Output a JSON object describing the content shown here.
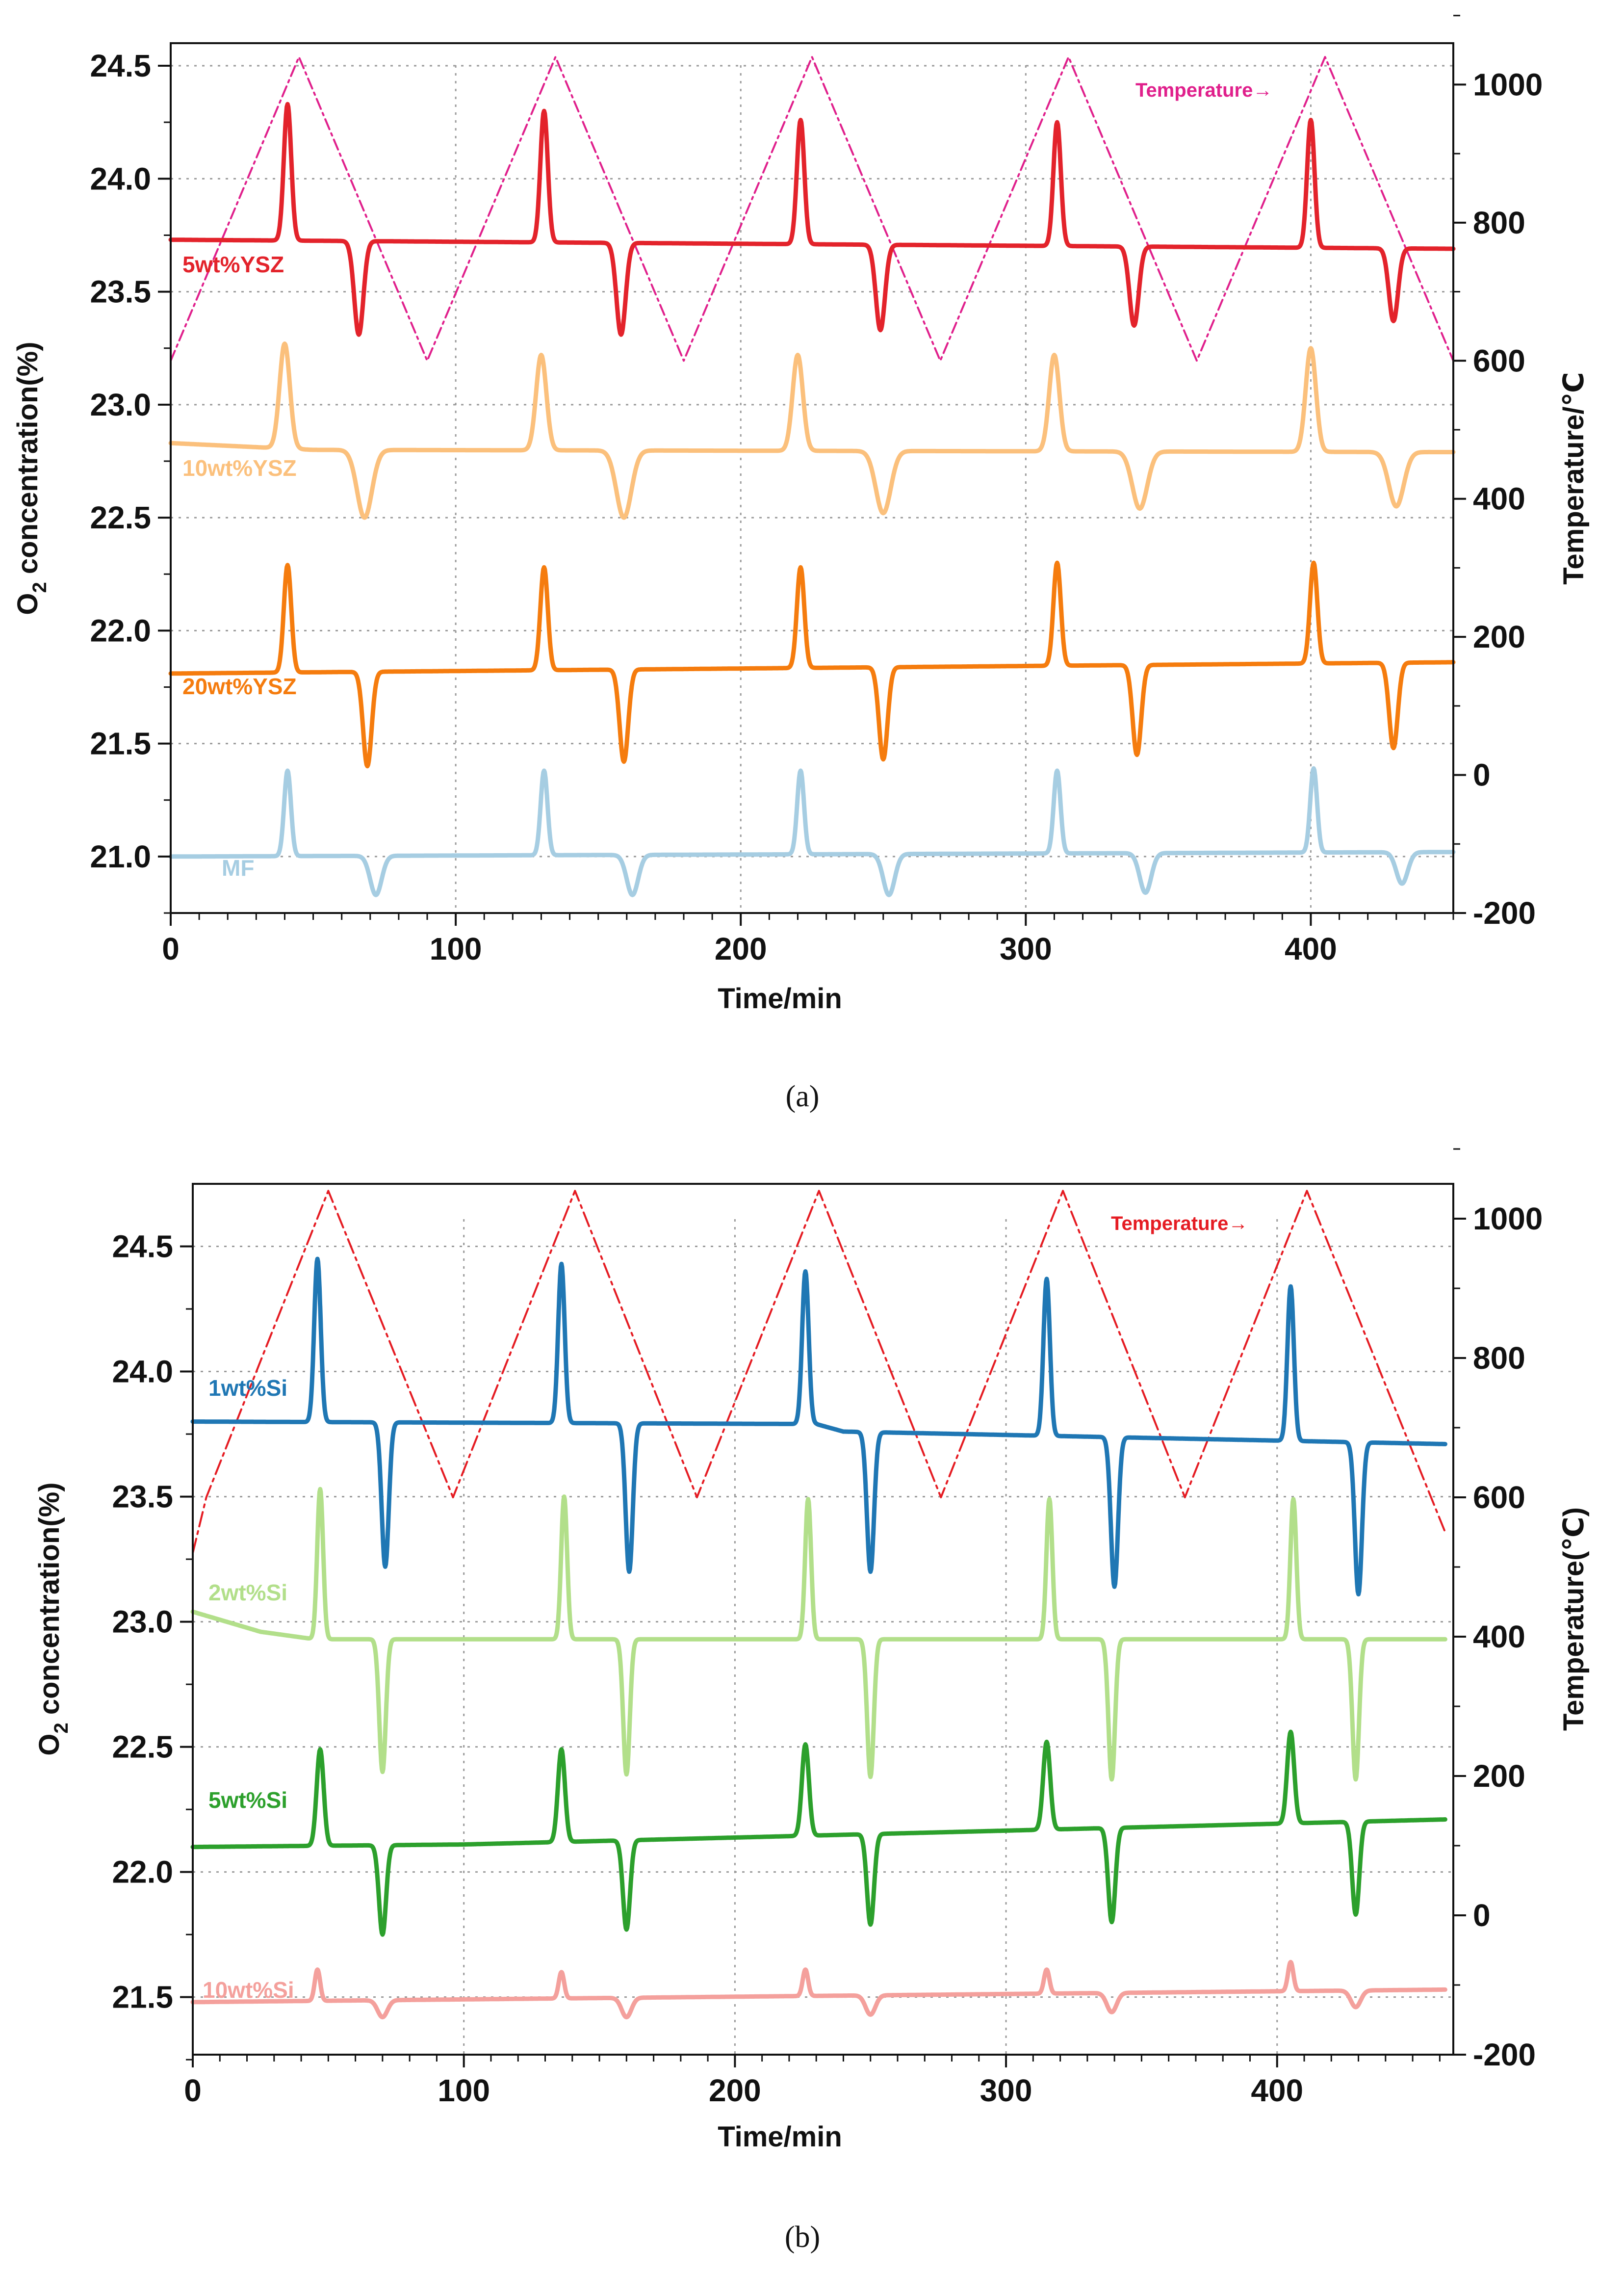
{
  "chart_data": [
    {
      "panel": "a",
      "caption": "(a)",
      "type": "line",
      "xlabel": "Time/min",
      "ylabel": "O2 concentration(%)",
      "ylabel_main": "O",
      "ylabel_sub": "2",
      "ylabel_rest": " concentration(%)",
      "y2label": "Temperature/℃",
      "xlim": [
        0,
        450
      ],
      "ylim": [
        20.75,
        24.6
      ],
      "y2lim": [
        -200,
        1060
      ],
      "x_ticks": [
        0,
        100,
        200,
        300,
        400
      ],
      "y_ticks": [
        "21.0",
        "21.5",
        "22.0",
        "22.5",
        "23.0",
        "23.5",
        "24.0",
        "24.5"
      ],
      "y2_ticks": [
        "-200",
        "0",
        "200",
        "400",
        "600",
        "800",
        "1000"
      ],
      "temperature": {
        "name": "Temperature→",
        "color": "#e0208c",
        "x": [
          0,
          45,
          90,
          135,
          180,
          225,
          270,
          315,
          360,
          405,
          450
        ],
        "values": [
          600,
          1040,
          600,
          1040,
          600,
          1040,
          600,
          1040,
          600,
          1040,
          600
        ]
      },
      "series": [
        {
          "name": "5wt%YSZ",
          "color": "#e3232b",
          "baseline": [
            [
              0,
              23.73
            ],
            [
              450,
              23.69
            ]
          ],
          "peaks": [
            {
              "x": 41,
              "y": 24.33,
              "w": 1.3
            },
            {
              "x": 66,
              "y": 23.31,
              "w": 1.6
            },
            {
              "x": 131,
              "y": 24.3,
              "w": 1.3
            },
            {
              "x": 158,
              "y": 23.31,
              "w": 1.6
            },
            {
              "x": 221,
              "y": 24.26,
              "w": 1.3
            },
            {
              "x": 249,
              "y": 23.33,
              "w": 1.6
            },
            {
              "x": 311,
              "y": 24.25,
              "w": 1.3
            },
            {
              "x": 338,
              "y": 23.35,
              "w": 1.6
            },
            {
              "x": 400,
              "y": 24.26,
              "w": 1.3
            },
            {
              "x": 429,
              "y": 23.37,
              "w": 1.6
            }
          ]
        },
        {
          "name": "10wt%YSZ",
          "color": "#fbc07c",
          "baseline": [
            [
              0,
              22.83
            ],
            [
              50,
              22.8
            ],
            [
              450,
              22.79
            ]
          ],
          "peaks": [
            {
              "x": 40,
              "y": 23.27,
              "w": 1.8
            },
            {
              "x": 68,
              "y": 22.5,
              "w": 2.6
            },
            {
              "x": 130,
              "y": 23.22,
              "w": 1.8
            },
            {
              "x": 159,
              "y": 22.5,
              "w": 2.6
            },
            {
              "x": 220,
              "y": 23.22,
              "w": 1.8
            },
            {
              "x": 250,
              "y": 22.52,
              "w": 2.6
            },
            {
              "x": 310,
              "y": 23.22,
              "w": 1.8
            },
            {
              "x": 340,
              "y": 22.54,
              "w": 2.6
            },
            {
              "x": 400,
              "y": 23.25,
              "w": 1.8
            },
            {
              "x": 430,
              "y": 22.55,
              "w": 2.6
            }
          ]
        },
        {
          "name": "20wt%YSZ",
          "color": "#f57c0e",
          "baseline": [
            [
              0,
              21.81
            ],
            [
              450,
              21.86
            ]
          ],
          "peaks": [
            {
              "x": 41,
              "y": 22.29,
              "w": 1.3
            },
            {
              "x": 69,
              "y": 21.4,
              "w": 1.5
            },
            {
              "x": 131,
              "y": 22.28,
              "w": 1.3
            },
            {
              "x": 159,
              "y": 21.42,
              "w": 1.5
            },
            {
              "x": 221,
              "y": 22.28,
              "w": 1.3
            },
            {
              "x": 250,
              "y": 21.43,
              "w": 1.5
            },
            {
              "x": 311,
              "y": 22.3,
              "w": 1.3
            },
            {
              "x": 339,
              "y": 21.45,
              "w": 1.5
            },
            {
              "x": 401,
              "y": 22.3,
              "w": 1.3
            },
            {
              "x": 429,
              "y": 21.48,
              "w": 1.5
            }
          ]
        },
        {
          "name": "MF",
          "color": "#a6cde2",
          "baseline": [
            [
              0,
              21.0
            ],
            [
              450,
              21.02
            ]
          ],
          "peaks": [
            {
              "x": 41,
              "y": 21.38,
              "w": 1.2
            },
            {
              "x": 72,
              "y": 20.83,
              "w": 2.0
            },
            {
              "x": 131,
              "y": 21.38,
              "w": 1.2
            },
            {
              "x": 162,
              "y": 20.83,
              "w": 2.0
            },
            {
              "x": 221,
              "y": 21.38,
              "w": 1.2
            },
            {
              "x": 252,
              "y": 20.83,
              "w": 2.0
            },
            {
              "x": 311,
              "y": 21.38,
              "w": 1.2
            },
            {
              "x": 342,
              "y": 20.84,
              "w": 2.0
            },
            {
              "x": 401,
              "y": 21.39,
              "w": 1.2
            },
            {
              "x": 432,
              "y": 20.88,
              "w": 2.0
            }
          ]
        }
      ]
    },
    {
      "panel": "b",
      "caption": "(b)",
      "type": "line",
      "xlabel": "Time/min",
      "ylabel": "O2 concentration(%)",
      "ylabel_main": "O",
      "ylabel_sub": "2",
      "ylabel_rest": " concentration(%)",
      "y2label": "Temperature(℃)",
      "xlim": [
        0,
        465
      ],
      "ylim": [
        21.27,
        24.75
      ],
      "y2lim": [
        -200,
        1050
      ],
      "x_ticks": [
        0,
        100,
        200,
        300,
        400
      ],
      "y_ticks": [
        "21.5",
        "22.0",
        "22.5",
        "23.0",
        "23.5",
        "24.0",
        "24.5"
      ],
      "y2_ticks": [
        "-200",
        "0",
        "200",
        "400",
        "600",
        "800",
        "1000"
      ],
      "temperature": {
        "name": "Temperature→",
        "color": "#e51c23",
        "x": [
          0,
          5,
          50,
          96,
          141,
          186,
          231,
          276,
          321,
          366,
          411,
          462
        ],
        "values": [
          520,
          600,
          1040,
          600,
          1040,
          600,
          1040,
          600,
          1040,
          600,
          1040,
          550
        ]
      },
      "series": [
        {
          "name": "1wt%Si",
          "color": "#1f77b4",
          "baseline": [
            [
              0,
              23.8
            ],
            [
              230,
              23.79
            ],
            [
              240,
              23.76
            ],
            [
              462,
              23.71
            ]
          ],
          "peaks": [
            {
              "x": 46,
              "y": 24.45,
              "w": 1.2
            },
            {
              "x": 71,
              "y": 23.22,
              "w": 1.3
            },
            {
              "x": 136,
              "y": 24.43,
              "w": 1.2
            },
            {
              "x": 161,
              "y": 23.2,
              "w": 1.3
            },
            {
              "x": 226,
              "y": 24.4,
              "w": 1.2
            },
            {
              "x": 250,
              "y": 23.2,
              "w": 1.3
            },
            {
              "x": 315,
              "y": 24.37,
              "w": 1.2
            },
            {
              "x": 340,
              "y": 23.14,
              "w": 1.3
            },
            {
              "x": 405,
              "y": 24.34,
              "w": 1.2
            },
            {
              "x": 430,
              "y": 23.11,
              "w": 1.3
            }
          ]
        },
        {
          "name": "2wt%Si",
          "color": "#b2df8a",
          "baseline": [
            [
              0,
              23.04
            ],
            [
              25,
              22.96
            ],
            [
              45,
              22.93
            ],
            [
              462,
              22.93
            ]
          ],
          "peaks": [
            {
              "x": 47,
              "y": 23.53,
              "w": 1.1
            },
            {
              "x": 70,
              "y": 22.4,
              "w": 1.2
            },
            {
              "x": 137,
              "y": 23.5,
              "w": 1.1
            },
            {
              "x": 160,
              "y": 22.39,
              "w": 1.2
            },
            {
              "x": 227,
              "y": 23.49,
              "w": 1.1
            },
            {
              "x": 250,
              "y": 22.38,
              "w": 1.2
            },
            {
              "x": 316,
              "y": 23.49,
              "w": 1.1
            },
            {
              "x": 339,
              "y": 22.37,
              "w": 1.2
            },
            {
              "x": 406,
              "y": 23.49,
              "w": 1.1
            },
            {
              "x": 429,
              "y": 22.37,
              "w": 1.2
            }
          ]
        },
        {
          "name": "5wt%Si",
          "color": "#2ca02c",
          "baseline": [
            [
              0,
              22.1
            ],
            [
              100,
              22.11
            ],
            [
              462,
              22.21
            ]
          ],
          "peaks": [
            {
              "x": 47,
              "y": 22.49,
              "w": 1.3
            },
            {
              "x": 70,
              "y": 21.75,
              "w": 1.3
            },
            {
              "x": 136,
              "y": 22.49,
              "w": 1.3
            },
            {
              "x": 160,
              "y": 21.77,
              "w": 1.3
            },
            {
              "x": 226,
              "y": 22.51,
              "w": 1.3
            },
            {
              "x": 250,
              "y": 21.79,
              "w": 1.3
            },
            {
              "x": 315,
              "y": 22.52,
              "w": 1.3
            },
            {
              "x": 339,
              "y": 21.8,
              "w": 1.3
            },
            {
              "x": 405,
              "y": 22.56,
              "w": 1.3
            },
            {
              "x": 429,
              "y": 21.83,
              "w": 1.3
            }
          ]
        },
        {
          "name": "10wt%Si",
          "color": "#f4a09c",
          "baseline": [
            [
              0,
              21.48
            ],
            [
              462,
              21.53
            ]
          ],
          "peaks": [
            {
              "x": 46,
              "y": 21.61,
              "w": 1.0
            },
            {
              "x": 70,
              "y": 21.42,
              "w": 1.8
            },
            {
              "x": 136,
              "y": 21.6,
              "w": 1.0
            },
            {
              "x": 160,
              "y": 21.42,
              "w": 1.8
            },
            {
              "x": 226,
              "y": 21.61,
              "w": 1.0
            },
            {
              "x": 250,
              "y": 21.43,
              "w": 1.8
            },
            {
              "x": 315,
              "y": 21.61,
              "w": 1.0
            },
            {
              "x": 339,
              "y": 21.44,
              "w": 1.8
            },
            {
              "x": 405,
              "y": 21.64,
              "w": 1.0
            },
            {
              "x": 429,
              "y": 21.46,
              "w": 1.8
            }
          ]
        }
      ]
    }
  ]
}
